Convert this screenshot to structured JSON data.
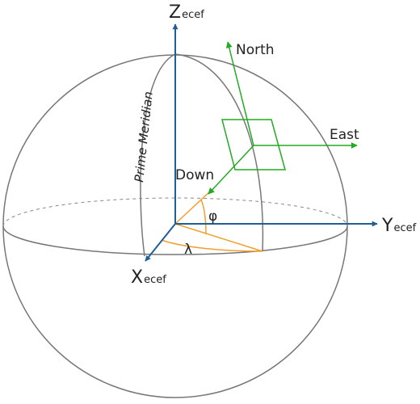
{
  "colors": {
    "axis": "#1f5f96",
    "ned": "#22aa22",
    "angle": "#f0a030",
    "sphere": "#777777"
  },
  "axes": {
    "z_main": "Z",
    "z_sub": "ecef",
    "y_main": "Y",
    "y_sub": "ecef",
    "x_main": "X",
    "x_sub": "ecef"
  },
  "ned": {
    "north": "North",
    "east": "East",
    "down": "Down"
  },
  "meridian_label": "Prime Meridian",
  "angles": {
    "latitude": "φ",
    "longitude": "λ"
  }
}
